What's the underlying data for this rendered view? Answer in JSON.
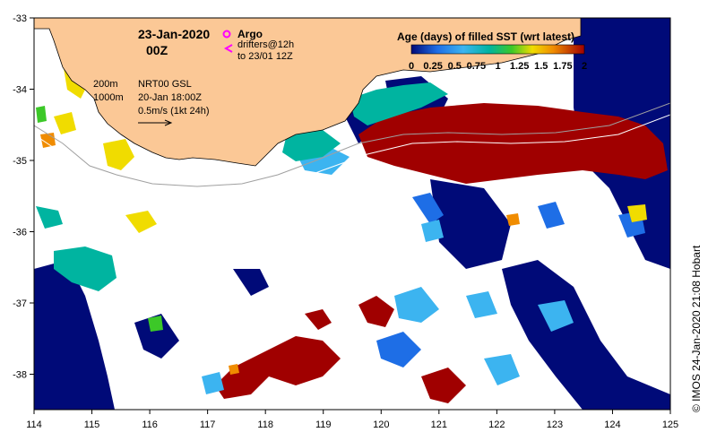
{
  "map": {
    "date": "23-Jan-2020",
    "time": "00Z",
    "argo_label": "Argo",
    "drifters_label": "drifters@12h",
    "drifters_range": "to 23/01 12Z",
    "contour_200": "200m",
    "contour_1000": "1000m",
    "product": "NRT00 GSL",
    "product_time": "20-Jan 18:00Z",
    "vector_scale": "0.5m/s (1kt 24h)",
    "credit": "© IMOS 24-Jan-2020 21:08 Hobart",
    "colors": {
      "land": "#fbc896",
      "navy": "#000a78",
      "blue": "#1e6ee6",
      "sky": "#3cb4f0",
      "teal": "#00b4a0",
      "green": "#3cc828",
      "yellow": "#f0dc00",
      "orange": "#f08c00",
      "darkred": "#a00000",
      "magenta": "#ff00ff"
    }
  },
  "colorbar": {
    "title": "Age (days) of filled SST (wrt latest)",
    "tick_labels": [
      "0",
      "0.25",
      "0.5",
      "0.75",
      "1",
      "1.25",
      "1.5",
      "1.75",
      "2"
    ],
    "range": [
      0,
      2
    ]
  },
  "axes": {
    "x_ticks": [
      "114",
      "115",
      "116",
      "117",
      "118",
      "119",
      "120",
      "121",
      "122",
      "123",
      "124",
      "125"
    ],
    "y_ticks": [
      "-33",
      "-34",
      "-35",
      "-36",
      "-37",
      "-38"
    ]
  }
}
